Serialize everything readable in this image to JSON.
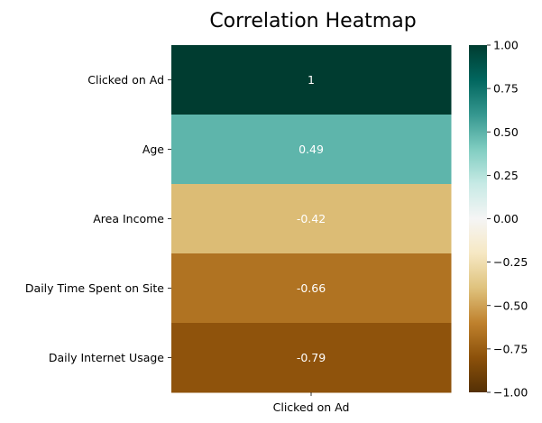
{
  "chart_data": {
    "type": "heatmap",
    "title": "Correlation Heatmap",
    "xlabel": "",
    "ylabel": "",
    "columns": [
      "Clicked on Ad"
    ],
    "rows": [
      "Clicked on Ad",
      "Age",
      "Area Income",
      "Daily Time Spent on Site",
      "Daily Internet Usage"
    ],
    "values": [
      [
        1
      ],
      [
        0.49
      ],
      [
        -0.42
      ],
      [
        -0.66
      ],
      [
        -0.79
      ]
    ],
    "annotations": [
      "1",
      "0.49",
      "-0.42",
      "-0.66",
      "-0.79"
    ],
    "colormap": "BrBG",
    "vmin": -1,
    "vmax": 1,
    "colorbar_ticks": [
      "1.00",
      "0.75",
      "0.50",
      "0.25",
      "0.00",
      "−0.25",
      "−0.50",
      "−0.75",
      "−1.00"
    ],
    "colorbar_tick_values": [
      1.0,
      0.75,
      0.5,
      0.25,
      0.0,
      -0.25,
      -0.5,
      -0.75,
      -1.0
    ],
    "colorbar_stops": [
      "#543005",
      "#8c510a",
      "#bf812d",
      "#dfc27d",
      "#f6e8c3",
      "#f5f5f5",
      "#c7eae5",
      "#80cdc1",
      "#35978f",
      "#01665e",
      "#003c30"
    ]
  }
}
